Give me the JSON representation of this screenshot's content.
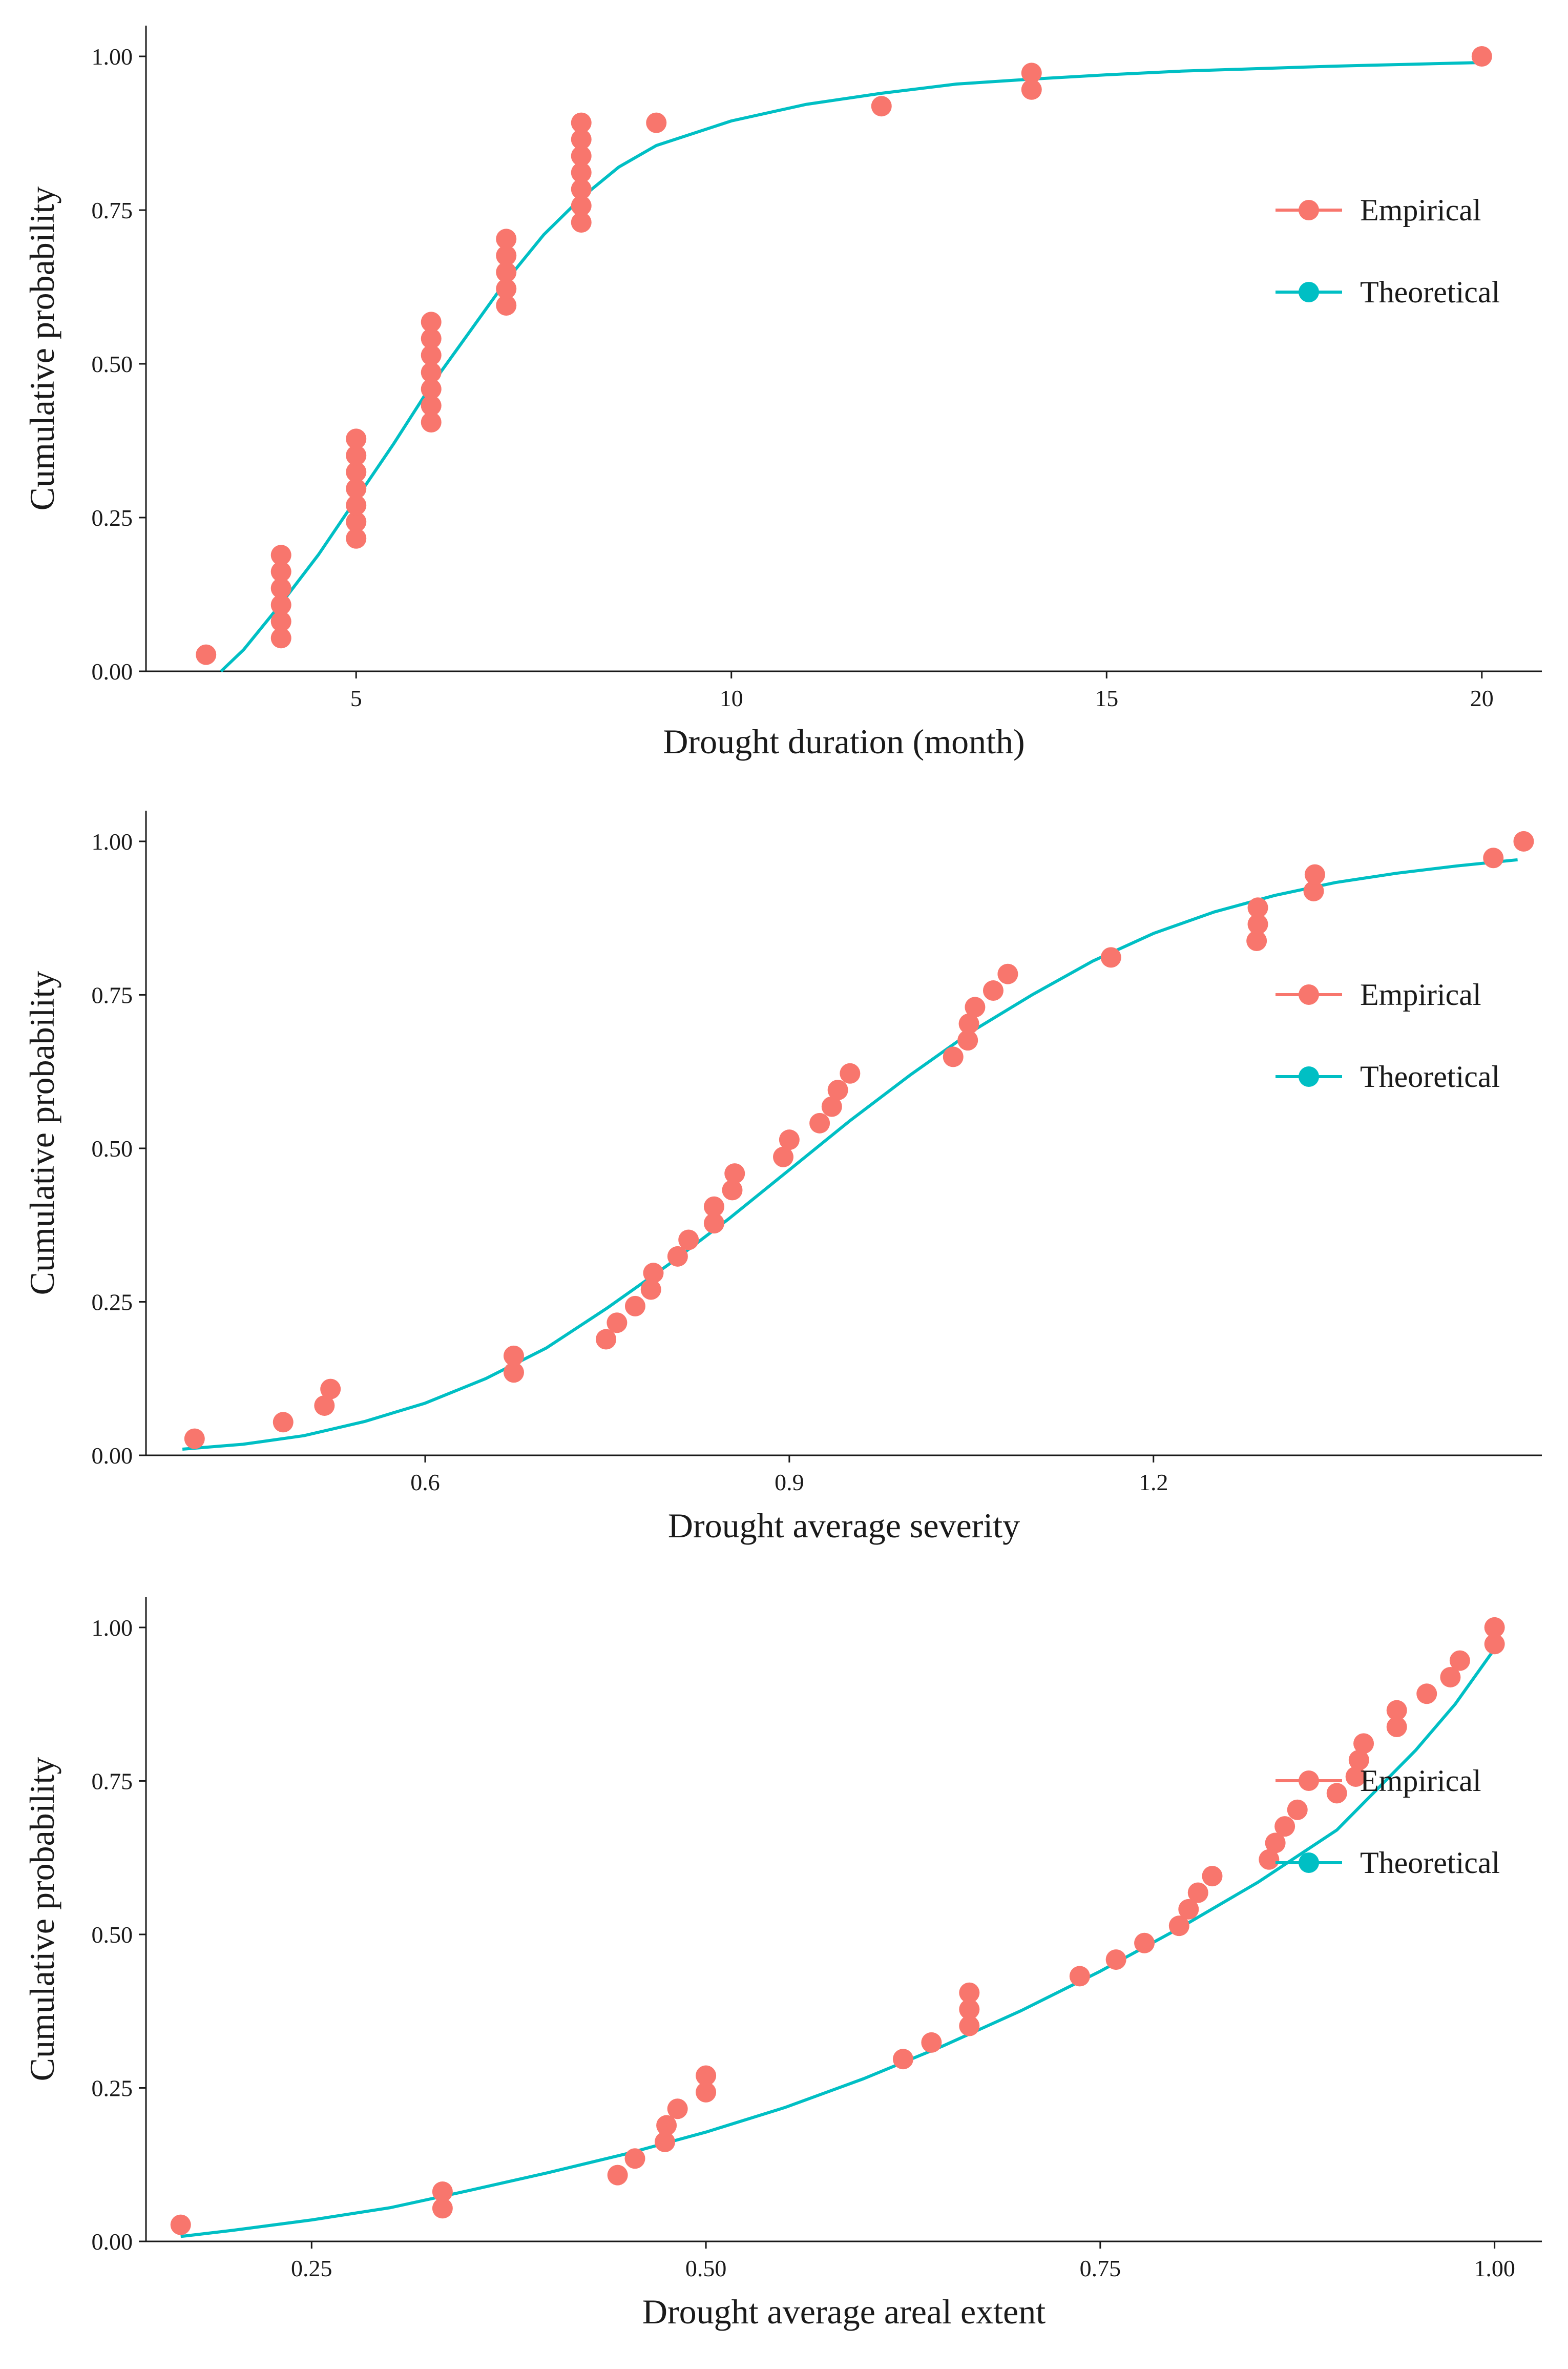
{
  "colors": {
    "empirical": "#F8766D",
    "theoretical": "#00BFC4",
    "axis": "#1a1a1a"
  },
  "legend": {
    "empirical": "Empirical",
    "theoretical": "Theoretical",
    "placement": "bottom-right"
  },
  "chart_data": [
    {
      "type": "scatter",
      "xlabel": "Drought duration (month)",
      "ylabel": "Cumulative probability",
      "xlim": [
        2.2,
        20.8
      ],
      "ylim": [
        0,
        1.05
      ],
      "xticks": [
        5,
        10,
        15,
        20
      ],
      "xtick_labels": [
        "5",
        "10",
        "15",
        "20"
      ],
      "yticks": [
        0,
        0.25,
        0.5,
        0.75,
        1
      ],
      "ytick_labels": [
        "0.00",
        "0.25",
        "0.50",
        "0.75",
        "1.00"
      ],
      "series": [
        {
          "name": "Empirical",
          "kind": "points",
          "x": [
            3,
            4,
            4,
            4,
            4,
            4,
            4,
            5,
            5,
            5,
            5,
            5,
            5,
            5,
            6,
            6,
            6,
            6,
            6,
            6,
            6,
            7,
            7,
            7,
            7,
            7,
            8,
            8,
            8,
            8,
            8,
            8,
            8,
            9,
            12,
            14,
            14,
            20
          ],
          "y": [
            0.027,
            0.054,
            0.081,
            0.108,
            0.135,
            0.162,
            0.189,
            0.216,
            0.243,
            0.27,
            0.297,
            0.324,
            0.351,
            0.378,
            0.405,
            0.432,
            0.459,
            0.486,
            0.514,
            0.541,
            0.568,
            0.595,
            0.622,
            0.649,
            0.676,
            0.703,
            0.73,
            0.757,
            0.784,
            0.811,
            0.838,
            0.865,
            0.892,
            0.892,
            0.919,
            0.946,
            0.973,
            1.0
          ]
        },
        {
          "name": "Theoretical",
          "kind": "line",
          "x": [
            3.2,
            3.5,
            4,
            4.5,
            5,
            5.5,
            6,
            6.5,
            7,
            7.5,
            8,
            8.5,
            9,
            10,
            11,
            12,
            13,
            14,
            15,
            16,
            17,
            18,
            19,
            20
          ],
          "y": [
            0.0,
            0.035,
            0.11,
            0.19,
            0.28,
            0.37,
            0.465,
            0.55,
            0.635,
            0.71,
            0.77,
            0.82,
            0.855,
            0.895,
            0.922,
            0.94,
            0.955,
            0.963,
            0.97,
            0.976,
            0.98,
            0.984,
            0.987,
            0.99
          ]
        }
      ]
    },
    {
      "type": "scatter",
      "xlabel": "Drought average severity",
      "ylabel": "Cumulative probability",
      "xlim": [
        0.37,
        1.52
      ],
      "ylim": [
        0,
        1.05
      ],
      "xticks": [
        0.6,
        0.9,
        1.2
      ],
      "xtick_labels": [
        "0.6",
        "0.9",
        "1.2"
      ],
      "yticks": [
        0,
        0.25,
        0.5,
        0.75,
        1
      ],
      "ytick_labels": [
        "0.00",
        "0.25",
        "0.50",
        "0.75",
        "1.00"
      ],
      "series": [
        {
          "name": "Empirical",
          "kind": "points",
          "x": [
            0.41,
            0.483,
            0.517,
            0.522,
            0.673,
            0.673,
            0.749,
            0.758,
            0.773,
            0.786,
            0.788,
            0.808,
            0.817,
            0.838,
            0.838,
            0.853,
            0.855,
            0.895,
            0.9,
            0.925,
            0.935,
            0.94,
            0.95,
            1.035,
            1.047,
            1.048,
            1.053,
            1.068,
            1.08,
            1.165,
            1.285,
            1.286,
            1.286,
            1.332,
            1.333,
            1.48,
            1.505
          ],
          "y": [
            0.027,
            0.054,
            0.081,
            0.108,
            0.135,
            0.162,
            0.189,
            0.216,
            0.243,
            0.27,
            0.297,
            0.324,
            0.351,
            0.378,
            0.405,
            0.432,
            0.459,
            0.486,
            0.514,
            0.541,
            0.568,
            0.595,
            0.622,
            0.649,
            0.676,
            0.703,
            0.73,
            0.757,
            0.784,
            0.811,
            0.838,
            0.865,
            0.892,
            0.919,
            0.946,
            0.973,
            1.0
          ]
        },
        {
          "name": "Theoretical",
          "kind": "line",
          "x": [
            0.4,
            0.45,
            0.5,
            0.55,
            0.6,
            0.65,
            0.7,
            0.75,
            0.8,
            0.85,
            0.9,
            0.95,
            1.0,
            1.05,
            1.1,
            1.15,
            1.2,
            1.25,
            1.3,
            1.35,
            1.4,
            1.45,
            1.5
          ],
          "y": [
            0.01,
            0.018,
            0.032,
            0.055,
            0.085,
            0.125,
            0.175,
            0.24,
            0.31,
            0.385,
            0.465,
            0.545,
            0.62,
            0.69,
            0.75,
            0.805,
            0.85,
            0.885,
            0.912,
            0.933,
            0.948,
            0.96,
            0.97
          ]
        }
      ]
    },
    {
      "type": "scatter",
      "xlabel": "Drought average areal extent",
      "ylabel": "Cumulative probability",
      "xlim": [
        0.145,
        1.03
      ],
      "ylim": [
        0,
        1.05
      ],
      "xticks": [
        0.25,
        0.5,
        0.75,
        1.0
      ],
      "xtick_labels": [
        "0.25",
        "0.50",
        "0.75",
        "1.00"
      ],
      "yticks": [
        0,
        0.25,
        0.5,
        0.75,
        1
      ],
      "ytick_labels": [
        "0.00",
        "0.25",
        "0.50",
        "0.75",
        "1.00"
      ],
      "series": [
        {
          "name": "Empirical",
          "kind": "points",
          "x": [
            0.167,
            0.333,
            0.333,
            0.444,
            0.455,
            0.474,
            0.475,
            0.482,
            0.5,
            0.5,
            0.625,
            0.643,
            0.667,
            0.667,
            0.667,
            0.737,
            0.76,
            0.778,
            0.8,
            0.806,
            0.812,
            0.821,
            0.857,
            0.861,
            0.867,
            0.875,
            0.9,
            0.912,
            0.914,
            0.917,
            0.938,
            0.938,
            0.957,
            0.972,
            0.978,
            1.0,
            1.0
          ],
          "y": [
            0.027,
            0.054,
            0.081,
            0.108,
            0.135,
            0.162,
            0.189,
            0.216,
            0.243,
            0.27,
            0.297,
            0.324,
            0.351,
            0.378,
            0.405,
            0.432,
            0.459,
            0.486,
            0.514,
            0.541,
            0.568,
            0.595,
            0.622,
            0.649,
            0.676,
            0.703,
            0.73,
            0.757,
            0.784,
            0.811,
            0.838,
            0.865,
            0.892,
            0.919,
            0.946,
            0.973,
            1.0
          ]
        },
        {
          "name": "Theoretical",
          "kind": "line",
          "x": [
            0.167,
            0.2,
            0.25,
            0.3,
            0.35,
            0.4,
            0.45,
            0.5,
            0.55,
            0.6,
            0.65,
            0.7,
            0.75,
            0.8,
            0.85,
            0.9,
            0.95,
            0.975,
            1.0
          ],
          "y": [
            0.008,
            0.018,
            0.035,
            0.055,
            0.083,
            0.112,
            0.143,
            0.178,
            0.218,
            0.265,
            0.318,
            0.376,
            0.44,
            0.51,
            0.585,
            0.67,
            0.8,
            0.875,
            0.965
          ]
        }
      ]
    }
  ]
}
